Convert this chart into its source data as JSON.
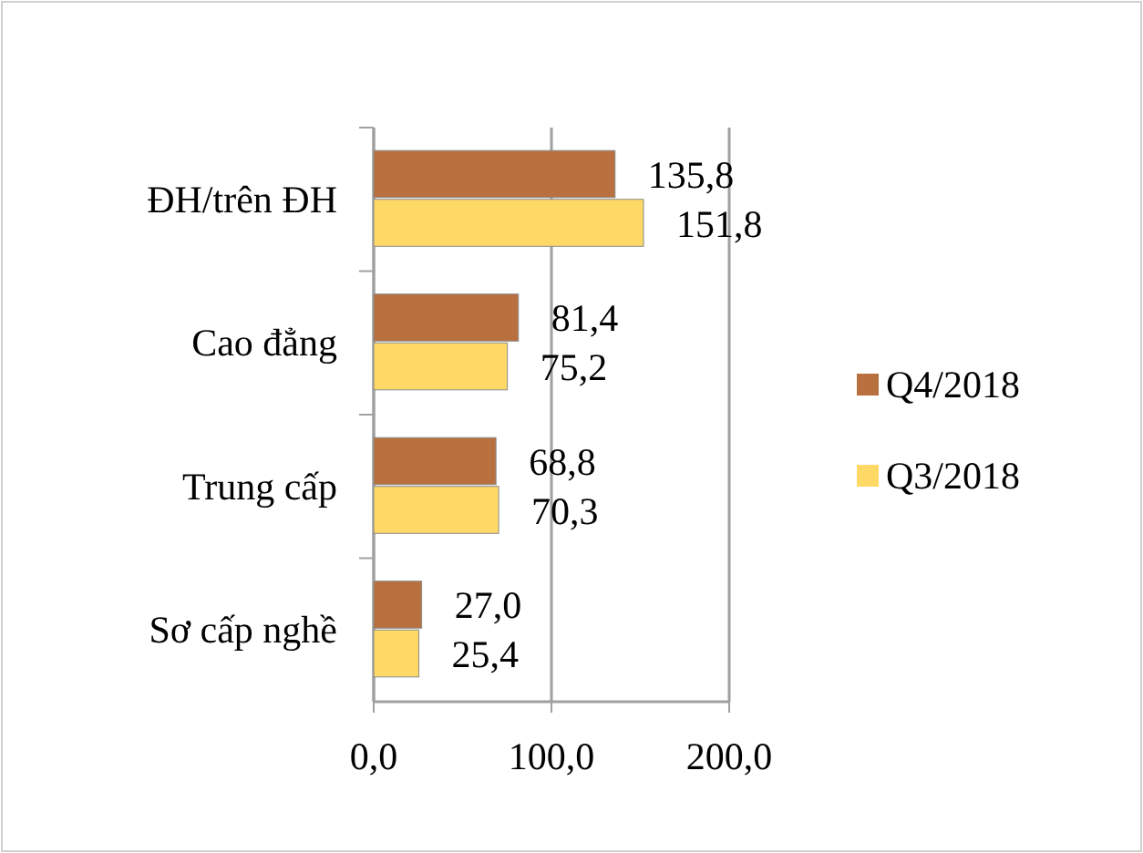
{
  "chart_data": {
    "type": "bar",
    "orientation": "horizontal",
    "categories": [
      "ĐH/trên ĐH",
      "Cao đẳng",
      "Trung cấp",
      "Sơ cấp nghề"
    ],
    "series": [
      {
        "name": "Q4/2018",
        "color": "#b8703f",
        "values": [
          135.8,
          81.4,
          68.8,
          27.0
        ],
        "value_labels": [
          "135,8",
          "81,4",
          "68,8",
          "27,0"
        ]
      },
      {
        "name": "Q3/2018",
        "color": "#ffd966",
        "values": [
          151.8,
          75.2,
          70.3,
          25.4
        ],
        "value_labels": [
          "151,8",
          "75,2",
          "70,3",
          "25,4"
        ]
      }
    ],
    "xlim": [
      0,
      200
    ],
    "xticks": [
      {
        "value": 0,
        "label": "0,0"
      },
      {
        "value": 100,
        "label": "100,0"
      },
      {
        "value": 200,
        "label": "200,0"
      }
    ],
    "grid": "x",
    "legend": "right"
  }
}
